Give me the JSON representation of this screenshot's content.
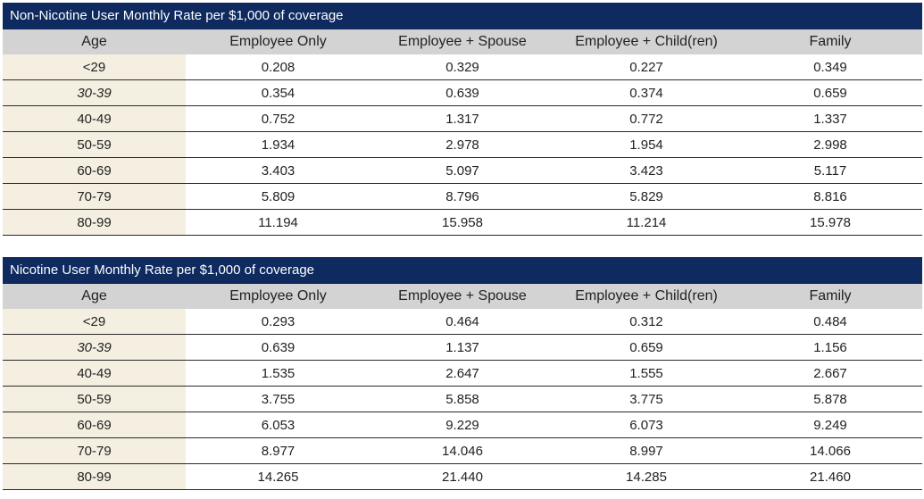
{
  "tables": [
    {
      "title": "Non-Nicotine User Monthly Rate per $1,000 of coverage",
      "headers": [
        "Age",
        "Employee Only",
        "Employee + Spouse",
        "Employee + Child(ren)",
        "Family"
      ],
      "rows": [
        [
          "<29",
          "0.208",
          "0.329",
          "0.227",
          "0.349"
        ],
        [
          "30-39",
          "0.354",
          "0.639",
          "0.374",
          "0.659"
        ],
        [
          "40-49",
          "0.752",
          "1.317",
          "0.772",
          "1.337"
        ],
        [
          "50-59",
          "1.934",
          "2.978",
          "1.954",
          "2.998"
        ],
        [
          "60-69",
          "3.403",
          "5.097",
          "3.423",
          "5.117"
        ],
        [
          "70-79",
          "5.809",
          "8.796",
          "5.829",
          "8.816"
        ],
        [
          "80-99",
          "11.194",
          "15.958",
          "11.214",
          "15.978"
        ]
      ]
    },
    {
      "title": "Nicotine User Monthly Rate per $1,000 of coverage",
      "headers": [
        "Age",
        "Employee Only",
        "Employee + Spouse",
        "Employee + Child(ren)",
        "Family"
      ],
      "rows": [
        [
          "<29",
          "0.293",
          "0.464",
          "0.312",
          "0.484"
        ],
        [
          "30-39",
          "0.639",
          "1.137",
          "0.659",
          "1.156"
        ],
        [
          "40-49",
          "1.535",
          "2.647",
          "1.555",
          "2.667"
        ],
        [
          "50-59",
          "3.755",
          "5.858",
          "3.775",
          "5.878"
        ],
        [
          "60-69",
          "6.053",
          "9.229",
          "6.073",
          "9.249"
        ],
        [
          "70-79",
          "8.977",
          "14.046",
          "8.997",
          "14.066"
        ],
        [
          "80-99",
          "14.265",
          "21.440",
          "14.285",
          "21.460"
        ]
      ]
    }
  ]
}
